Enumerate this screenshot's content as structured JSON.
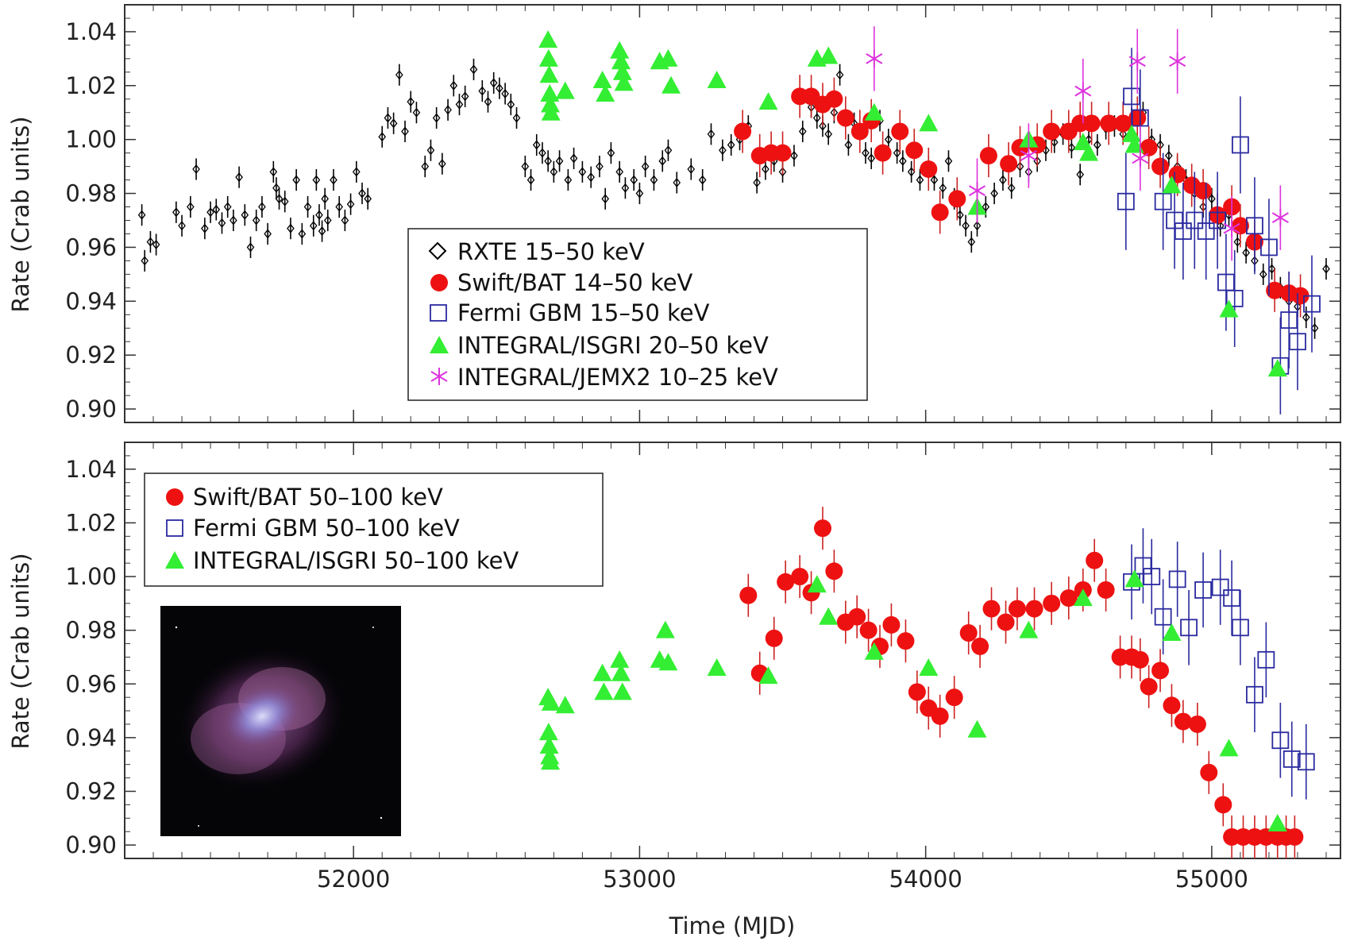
{
  "colors": {
    "rxte": "#000000",
    "bat": "#ee1111",
    "bat_err": "#cc2222",
    "gbm": "#2a2aa0",
    "isgri": "#33ee33",
    "jemx": "#dd33dd"
  },
  "inset_image": {
    "description_icon": "crab-nebula-image"
  },
  "chart_data": [
    {
      "type": "scatter",
      "xlabel": "",
      "ylabel": "Rate (Crab units)",
      "xlim": [
        51200,
        55450
      ],
      "ylim": [
        0.895,
        1.05
      ],
      "x_ticks": [
        52000,
        53000,
        54000,
        55000
      ],
      "y_ticks": [
        0.9,
        0.92,
        0.94,
        0.96,
        0.98,
        1.0,
        1.02,
        1.04
      ],
      "y_tick_labels": [
        "0.90",
        "0.92",
        "0.94",
        "0.96",
        "0.98",
        "1.00",
        "1.02",
        "1.04"
      ],
      "legend_position": "bottom-center",
      "series": [
        {
          "name": "RXTE 15–50 keV",
          "marker": "diamond",
          "color_key": "rxte",
          "err": 0.004,
          "x": [
            51260,
            51270,
            51290,
            51310,
            51380,
            51400,
            51430,
            51450,
            51480,
            51500,
            51520,
            51540,
            51560,
            51580,
            51600,
            51620,
            51640,
            51660,
            51680,
            51700,
            51720,
            51730,
            51740,
            51760,
            51780,
            51800,
            51820,
            51840,
            51860,
            51870,
            51880,
            51890,
            51900,
            51910,
            51930,
            51950,
            51970,
            51990,
            52010,
            52030,
            52050,
            52100,
            52120,
            52140,
            52160,
            52180,
            52200,
            52220,
            52250,
            52270,
            52290,
            52310,
            52330,
            52350,
            52370,
            52390,
            52420,
            52450,
            52470,
            52490,
            52510,
            52530,
            52550,
            52570,
            52600,
            52620,
            52640,
            52660,
            52680,
            52700,
            52720,
            52750,
            52770,
            52800,
            52830,
            52860,
            52880,
            52900,
            52930,
            52950,
            52980,
            53000,
            53020,
            53050,
            53080,
            53100,
            53130,
            53180,
            53220,
            53250,
            53290,
            53320,
            53350,
            53380,
            53410,
            53440,
            53470,
            53500,
            53540,
            53570,
            53600,
            53620,
            53640,
            53660,
            53680,
            53700,
            53730,
            53750,
            53790,
            53810,
            53840,
            53870,
            53900,
            53920,
            53950,
            53980,
            54010,
            54030,
            54060,
            54080,
            54100,
            54120,
            54140,
            54160,
            54180,
            54210,
            54240,
            54270,
            54300,
            54330,
            54360,
            54390,
            54420,
            54450,
            54480,
            54510,
            54540,
            54570,
            54600,
            54630,
            54660,
            54690,
            54720,
            54760,
            54790,
            54820,
            54850,
            54880,
            54910,
            54940,
            54970,
            55000,
            55030,
            55060,
            55090,
            55120,
            55150,
            55180,
            55210,
            55240,
            55270,
            55300,
            55330,
            55360,
            55400
          ],
          "y": [
            0.972,
            0.955,
            0.962,
            0.961,
            0.973,
            0.968,
            0.975,
            0.989,
            0.967,
            0.973,
            0.974,
            0.969,
            0.975,
            0.97,
            0.986,
            0.972,
            0.96,
            0.97,
            0.975,
            0.965,
            0.988,
            0.982,
            0.978,
            0.977,
            0.967,
            0.985,
            0.965,
            0.975,
            0.968,
            0.985,
            0.972,
            0.966,
            0.978,
            0.97,
            0.985,
            0.975,
            0.97,
            0.976,
            0.988,
            0.98,
            0.978,
            1.001,
            1.008,
            1.006,
            1.024,
            1.003,
            1.014,
            1.01,
            0.99,
            0.996,
            1.008,
            0.991,
            1.011,
            1.02,
            1.013,
            1.016,
            1.026,
            1.018,
            1.014,
            1.021,
            1.019,
            1.017,
            1.013,
            1.008,
            0.99,
            0.985,
            0.998,
            0.995,
            0.992,
            0.988,
            0.992,
            0.985,
            0.993,
            0.988,
            0.986,
            0.99,
            0.978,
            0.995,
            0.988,
            0.982,
            0.985,
            0.98,
            0.99,
            0.985,
            0.992,
            0.996,
            0.984,
            0.989,
            0.985,
            1.002,
            0.996,
            0.998,
            1.0,
            1.005,
            0.984,
            0.989,
            0.992,
            0.988,
            0.994,
            1.003,
            1.012,
            1.008,
            1.005,
            1.002,
            1.01,
            1.024,
            0.998,
            1.006,
            0.995,
            0.993,
            1.007,
            1.0,
            0.995,
            0.992,
            0.988,
            0.985,
            0.99,
            0.985,
            0.982,
            0.992,
            0.978,
            0.972,
            0.968,
            0.962,
            0.968,
            0.975,
            0.98,
            0.985,
            0.982,
            0.99,
            0.988,
            0.992,
            0.996,
            0.999,
            1.002,
            0.997,
            0.987,
            1.0,
            0.998,
            1.004,
            1.005,
            1.002,
            1.008,
            1.01,
            1.0,
            0.998,
            0.994,
            0.99,
            0.985,
            0.98,
            0.975,
            0.978,
            0.968,
            0.972,
            0.962,
            0.958,
            0.955,
            0.95,
            0.952,
            0.945,
            0.94,
            0.938,
            0.934,
            0.93,
            0.952
          ]
        },
        {
          "name": "Swift/BAT 14–50 keV",
          "marker": "circle",
          "color_key": "bat",
          "err": 0.008,
          "x": [
            53360,
            53420,
            53460,
            53500,
            53560,
            53600,
            53640,
            53680,
            53720,
            53770,
            53810,
            53850,
            53910,
            53960,
            54010,
            54050,
            54110,
            54220,
            54290,
            54330,
            54390,
            54440,
            54500,
            54540,
            54580,
            54640,
            54690,
            54740,
            54780,
            54820,
            54880,
            54930,
            54970,
            55020,
            55070,
            55100,
            55150,
            55220,
            55270,
            55310
          ],
          "y": [
            1.003,
            0.994,
            0.995,
            0.995,
            1.016,
            1.016,
            1.013,
            1.015,
            1.008,
            1.003,
            1.007,
            0.995,
            1.003,
            0.996,
            0.989,
            0.973,
            0.978,
            0.994,
            0.991,
            0.997,
            0.998,
            1.003,
            1.003,
            1.006,
            1.006,
            1.006,
            1.006,
            1.008,
            0.997,
            0.99,
            0.987,
            0.983,
            0.981,
            0.972,
            0.975,
            0.968,
            0.962,
            0.944,
            0.943,
            0.942
          ]
        },
        {
          "name": "Fermi GBM 15–50 keV",
          "marker": "square",
          "color_key": "gbm",
          "err": 0.018,
          "x": [
            54700,
            54720,
            54750,
            54830,
            54870,
            54900,
            54940,
            54980,
            55020,
            55050,
            55080,
            55100,
            55150,
            55200,
            55240,
            55270,
            55300,
            55350
          ],
          "y": [
            0.977,
            1.016,
            1.008,
            0.977,
            0.97,
            0.966,
            0.97,
            0.966,
            0.97,
            0.947,
            0.941,
            0.998,
            0.968,
            0.96,
            0.916,
            0.933,
            0.925,
            0.939
          ]
        },
        {
          "name": "INTEGRAL/ISGRI 20–50 keV",
          "marker": "triangle",
          "color_key": "isgri",
          "err": 0.0,
          "x": [
            52680,
            52682,
            52684,
            52686,
            52688,
            52690,
            52740,
            52870,
            52880,
            52930,
            52935,
            52940,
            52945,
            53070,
            53100,
            53110,
            53270,
            53450,
            53620,
            53660,
            53820,
            54010,
            54180,
            54360,
            54550,
            54570,
            54720,
            54730,
            54860,
            55060,
            55230
          ],
          "y": [
            1.037,
            1.03,
            1.024,
            1.017,
            1.013,
            1.01,
            1.018,
            1.022,
            1.017,
            1.033,
            1.029,
            1.025,
            1.021,
            1.029,
            1.03,
            1.02,
            1.022,
            1.014,
            1.03,
            1.031,
            1.01,
            1.006,
            0.975,
            1.0,
            0.999,
            0.995,
            1.002,
            0.998,
            0.983,
            0.937,
            0.915
          ]
        },
        {
          "name": "INTEGRAL/JEMX2 10–25 keV",
          "marker": "asterisk",
          "color_key": "jemx",
          "err": 0.012,
          "x": [
            53820,
            54180,
            54360,
            54550,
            54740,
            54750,
            54880,
            55070,
            55240
          ],
          "y": [
            1.03,
            0.981,
            0.994,
            1.018,
            1.029,
            0.993,
            1.029,
            0.967,
            0.971
          ]
        }
      ]
    },
    {
      "type": "scatter",
      "xlabel": "Time (MJD)",
      "ylabel": "Rate (Crab units)",
      "xlim": [
        51200,
        55450
      ],
      "ylim": [
        0.895,
        1.05
      ],
      "x_ticks": [
        52000,
        53000,
        54000,
        55000
      ],
      "x_tick_labels": [
        "52000",
        "53000",
        "54000",
        "55000"
      ],
      "y_ticks": [
        0.9,
        0.92,
        0.94,
        0.96,
        0.98,
        1.0,
        1.02,
        1.04
      ],
      "y_tick_labels": [
        "0.90",
        "0.92",
        "0.94",
        "0.96",
        "0.98",
        "1.00",
        "1.02",
        "1.04"
      ],
      "legend_position": "top-left",
      "series": [
        {
          "name": "Swift/BAT 50–100 keV",
          "marker": "circle",
          "color_key": "bat",
          "err": 0.008,
          "x": [
            53380,
            53420,
            53470,
            53510,
            53560,
            53600,
            53640,
            53680,
            53720,
            53760,
            53800,
            53840,
            53880,
            53930,
            53970,
            54010,
            54050,
            54100,
            54150,
            54190,
            54230,
            54280,
            54320,
            54380,
            54440,
            54500,
            54550,
            54590,
            54630,
            54680,
            54720,
            54750,
            54780,
            54820,
            54860,
            54900,
            54950,
            54990,
            55040,
            55070,
            55110,
            55150,
            55190,
            55230,
            55260,
            55290
          ],
          "y": [
            0.993,
            0.964,
            0.977,
            0.998,
            1.0,
            0.994,
            1.018,
            1.002,
            0.983,
            0.985,
            0.98,
            0.974,
            0.982,
            0.976,
            0.957,
            0.951,
            0.948,
            0.955,
            0.979,
            0.974,
            0.988,
            0.983,
            0.988,
            0.988,
            0.99,
            0.992,
            0.995,
            1.006,
            0.995,
            0.97,
            0.97,
            0.969,
            0.959,
            0.965,
            0.952,
            0.946,
            0.945,
            0.927,
            0.915,
            0.903,
            0.903,
            0.903,
            0.903,
            0.903,
            0.903,
            0.903
          ]
        },
        {
          "name": "Fermi GBM 50–100 keV",
          "marker": "square",
          "color_key": "gbm",
          "err": 0.014,
          "x": [
            54720,
            54760,
            54790,
            54830,
            54880,
            54920,
            54970,
            55030,
            55070,
            55100,
            55150,
            55190,
            55240,
            55280,
            55330
          ],
          "y": [
            0.998,
            1.004,
            1.0,
            0.985,
            0.999,
            0.981,
            0.995,
            0.996,
            0.992,
            0.981,
            0.956,
            0.969,
            0.939,
            0.932,
            0.931
          ]
        },
        {
          "name": "INTEGRAL/ISGRI 50–100 keV",
          "marker": "triangle",
          "color_key": "isgri",
          "err": 0.0,
          "x": [
            52680,
            52682,
            52684,
            52686,
            52688,
            52690,
            52740,
            52870,
            52875,
            52930,
            52935,
            52940,
            53070,
            53090,
            53100,
            53270,
            53450,
            53620,
            53660,
            53820,
            54010,
            54180,
            54360,
            54550,
            54730,
            54860,
            55060,
            55230
          ],
          "y": [
            0.955,
            0.942,
            0.937,
            0.933,
            0.931,
            0.953,
            0.952,
            0.964,
            0.957,
            0.969,
            0.964,
            0.957,
            0.969,
            0.98,
            0.968,
            0.966,
            0.963,
            0.997,
            0.985,
            0.972,
            0.966,
            0.943,
            0.98,
            0.992,
            0.999,
            0.979,
            0.936,
            0.908
          ]
        }
      ]
    }
  ]
}
